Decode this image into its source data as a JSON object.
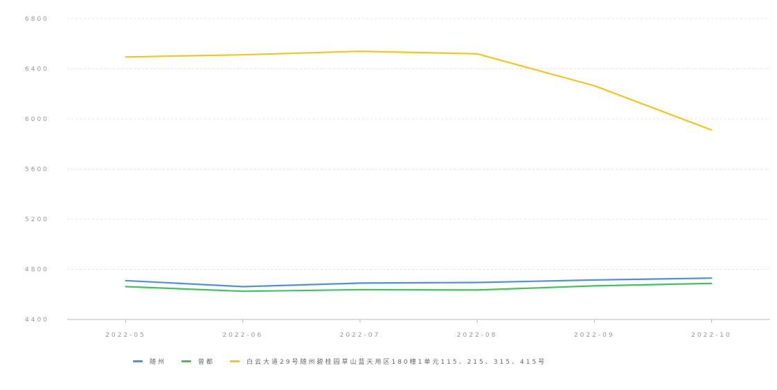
{
  "chart_data": {
    "type": "line",
    "title": "",
    "xlabel": "",
    "ylabel": "",
    "categories": [
      "2022-05",
      "2022-06",
      "2022-07",
      "2022-08",
      "2022-09",
      "2022-10"
    ],
    "ylim": [
      4400,
      6800
    ],
    "yticks": [
      4400,
      4800,
      5200,
      5600,
      6000,
      6400,
      6800
    ],
    "grid": true,
    "legend_position": "bottom",
    "series": [
      {
        "name": "随州",
        "color": "#4a90e2",
        "values": [
          4710,
          4662,
          4690,
          4695,
          4715,
          4730
        ]
      },
      {
        "name": "曾都",
        "color": "#3cc45a",
        "values": [
          4662,
          4625,
          4638,
          4635,
          4668,
          4688
        ]
      },
      {
        "name": "白云大道29号随州碧桂园草山蓝天用区180幢1单元115、215、315、415号",
        "color": "#f5c518",
        "values": [
          6495,
          6512,
          6540,
          6520,
          6265,
          5912
        ]
      }
    ]
  }
}
